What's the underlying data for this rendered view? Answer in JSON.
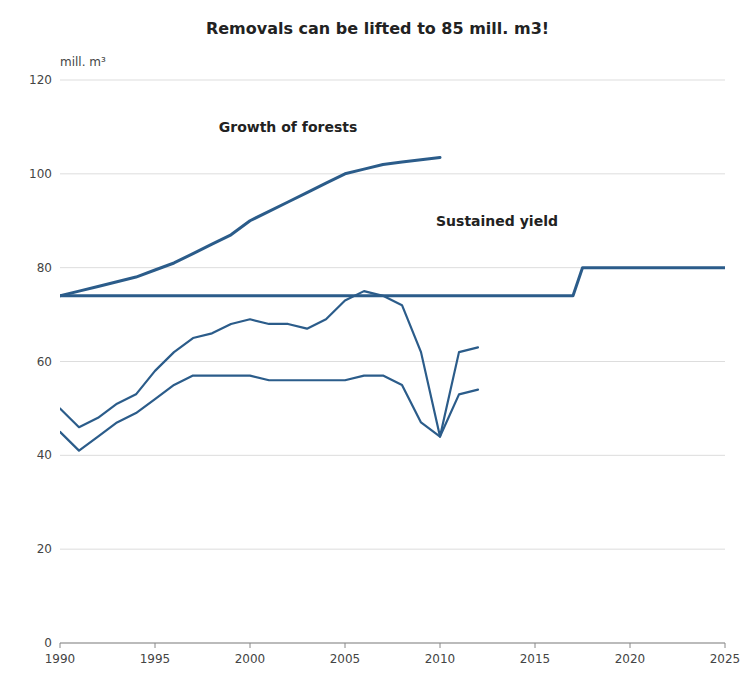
{
  "chart_data": {
    "type": "line",
    "title": "Removals can be lifted to 85 mill. m3!",
    "ylabel": "mill. m³",
    "xlim": [
      1990,
      2025
    ],
    "ylim": [
      0,
      120
    ],
    "xticks": [
      1990,
      1995,
      2000,
      2005,
      2010,
      2015,
      2020,
      2025
    ],
    "yticks": [
      0,
      20,
      40,
      60,
      80,
      100,
      120
    ],
    "grid": true,
    "color": "#2b5c8a",
    "series": [
      {
        "x": [
          1990,
          1991,
          1992,
          1993,
          1994,
          1995,
          1996,
          1997,
          1998,
          1999,
          2000,
          2001,
          2002,
          2003,
          2004,
          2005,
          2006,
          2007,
          2008,
          2009,
          2010
        ],
        "values": [
          74,
          75,
          76,
          77,
          78,
          79.5,
          81,
          83,
          85,
          87,
          90,
          92,
          94,
          96,
          98,
          100,
          101,
          102,
          102.5,
          103,
          103.5
        ]
      },
      {
        "x": [
          1990,
          2015,
          2016,
          2017,
          2017.5,
          2025
        ],
        "values": [
          74,
          74,
          74,
          74,
          80,
          80
        ]
      },
      {
        "x": [
          1990,
          1991,
          1992,
          1993,
          1994,
          1995,
          1996,
          1997,
          1998,
          1999,
          2000,
          2001,
          2002,
          2003,
          2004,
          2005,
          2006,
          2007,
          2008,
          2009,
          2010,
          2011,
          2012
        ],
        "values": [
          50,
          46,
          48,
          51,
          53,
          58,
          62,
          65,
          66,
          68,
          69,
          68,
          68,
          67,
          69,
          73,
          75,
          74,
          72,
          62,
          44,
          62,
          63
        ]
      },
      {
        "x": [
          1990,
          1991,
          1992,
          1993,
          1994,
          1995,
          1996,
          1997,
          1998,
          1999,
          2000,
          2001,
          2002,
          2003,
          2004,
          2005,
          2006,
          2007,
          2008,
          2009,
          2010,
          2011,
          2012
        ],
        "values": [
          45,
          41,
          44,
          47,
          49,
          52,
          55,
          57,
          57,
          57,
          57,
          56,
          56,
          56,
          56,
          56,
          57,
          57,
          55,
          47,
          44,
          53,
          54
        ]
      }
    ],
    "annotations": [
      {
        "text": "Growth of forests",
        "x": 2002,
        "y": 108
      },
      {
        "text": "Sustained yield",
        "x": 2013,
        "y": 88
      }
    ]
  }
}
